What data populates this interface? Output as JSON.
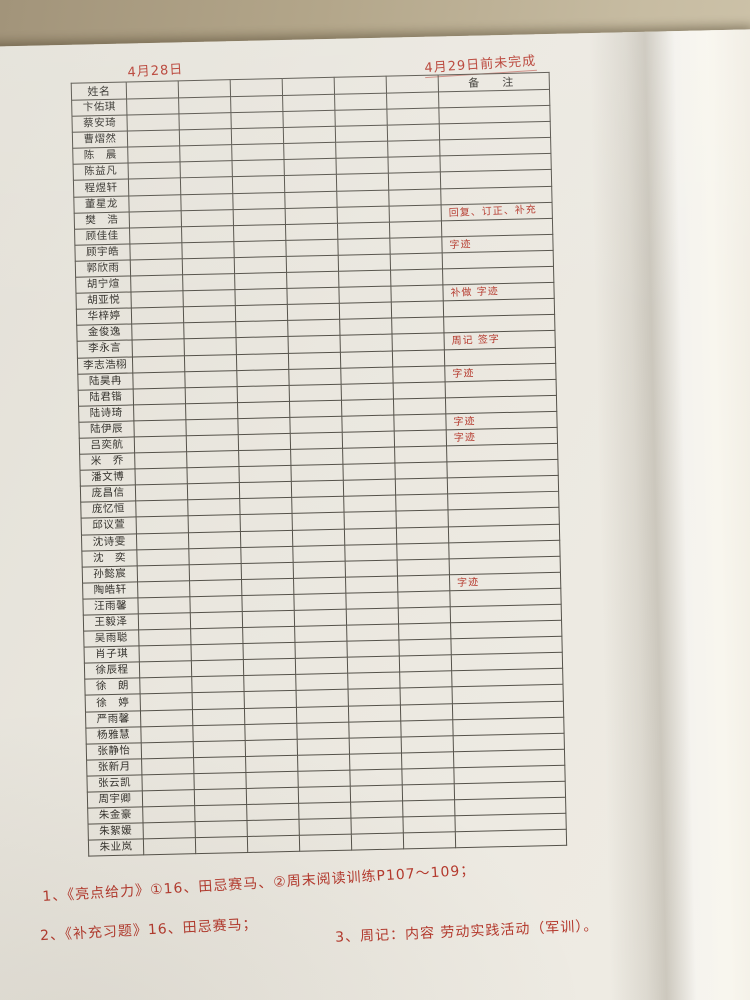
{
  "photo": {
    "desk_color": "#b3a68a",
    "paper_color": "#eae7df",
    "grid_line_color": "#55524a",
    "print_text_color": "#34322d",
    "red_ink_color": "#b5392d"
  },
  "annotations": {
    "date_left": "4月28日",
    "deadline_right": "4月29日前未完成"
  },
  "table": {
    "name_header": "姓名",
    "remark_header": "备　注",
    "blank_column_count": 6,
    "rows": [
      {
        "name": "卞佑琪",
        "note": ""
      },
      {
        "name": "蔡安琦",
        "note": ""
      },
      {
        "name": "曹熠然",
        "note": ""
      },
      {
        "name": "陈　晨",
        "note": ""
      },
      {
        "name": "陈益凡",
        "note": ""
      },
      {
        "name": "程煜轩",
        "note": ""
      },
      {
        "name": "董星龙",
        "note": ""
      },
      {
        "name": "樊　浩",
        "note": "回复、订正、补充"
      },
      {
        "name": "顾佳佳",
        "note": ""
      },
      {
        "name": "顾宇皓",
        "note": "字迹"
      },
      {
        "name": "郭欣雨",
        "note": ""
      },
      {
        "name": "胡宁煊",
        "note": ""
      },
      {
        "name": "胡亚悦",
        "note": "补做 字迹"
      },
      {
        "name": "华梓婷",
        "note": ""
      },
      {
        "name": "金俊逸",
        "note": ""
      },
      {
        "name": "李永言",
        "note": "周记 签字"
      },
      {
        "name": "李志浩栩",
        "note": ""
      },
      {
        "name": "陆昊冉",
        "note": "字迹"
      },
      {
        "name": "陆君锴",
        "note": ""
      },
      {
        "name": "陆诗琦",
        "note": ""
      },
      {
        "name": "陆伊辰",
        "note": "字迹"
      },
      {
        "name": "吕奕航",
        "note": "字迹"
      },
      {
        "name": "米　乔",
        "note": ""
      },
      {
        "name": "潘文博",
        "note": ""
      },
      {
        "name": "庞昌信",
        "note": ""
      },
      {
        "name": "庞忆恒",
        "note": ""
      },
      {
        "name": "邱议萱",
        "note": ""
      },
      {
        "name": "沈诗雯",
        "note": ""
      },
      {
        "name": "沈　奕",
        "note": ""
      },
      {
        "name": "孙懿宸",
        "note": ""
      },
      {
        "name": "陶皓轩",
        "note": "字迹"
      },
      {
        "name": "汪雨馨",
        "note": ""
      },
      {
        "name": "王毅泽",
        "note": ""
      },
      {
        "name": "吴雨聪",
        "note": ""
      },
      {
        "name": "肖子琪",
        "note": ""
      },
      {
        "name": "徐辰程",
        "note": ""
      },
      {
        "name": "徐　朗",
        "note": ""
      },
      {
        "name": "徐　婷",
        "note": ""
      },
      {
        "name": "严雨馨",
        "note": ""
      },
      {
        "name": "杨雅慧",
        "note": ""
      },
      {
        "name": "张静怡",
        "note": ""
      },
      {
        "name": "张新月",
        "note": ""
      },
      {
        "name": "张云凯",
        "note": ""
      },
      {
        "name": "周宇卿",
        "note": ""
      },
      {
        "name": "朱金豪",
        "note": ""
      },
      {
        "name": "朱絮媛",
        "note": ""
      },
      {
        "name": "朱业岚",
        "note": ""
      }
    ]
  },
  "footer_notes": {
    "line1": "1、《亮点给力》①16、田忌赛马、②周末阅读训练P107～109；",
    "line2": "2、《补充习题》16、田忌赛马；",
    "line3": "3、周记：内容 劳动实践活动（军训）。"
  }
}
